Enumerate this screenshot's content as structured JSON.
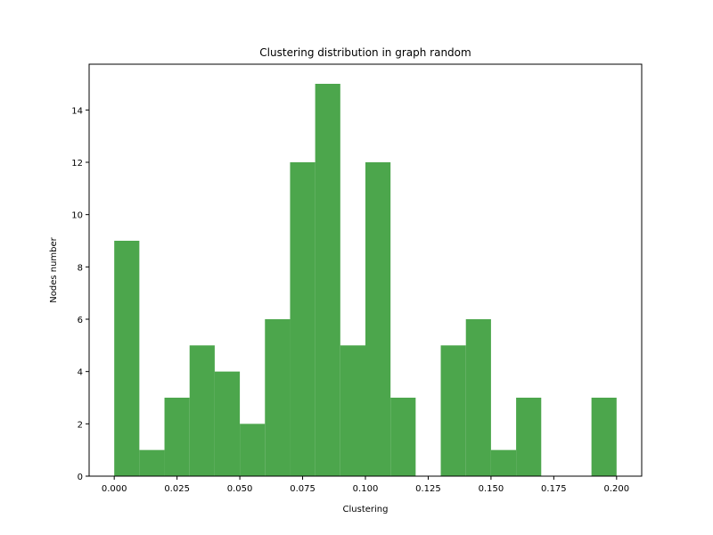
{
  "chart_data": {
    "type": "bar",
    "title": "Clustering distribution in graph random",
    "xlabel": "Clustering",
    "ylabel": "Nodes number",
    "xlim": [
      -0.01,
      0.21
    ],
    "ylim": [
      0,
      15.75
    ],
    "grid": false,
    "bar_color": "#4ca64c",
    "bin_edges": [
      0.0,
      0.01,
      0.02,
      0.03,
      0.04,
      0.05,
      0.06,
      0.07,
      0.08,
      0.09,
      0.1,
      0.11,
      0.12,
      0.13,
      0.14,
      0.15,
      0.16,
      0.17,
      0.18,
      0.19,
      0.2
    ],
    "values": [
      9,
      1,
      3,
      5,
      4,
      2,
      6,
      12,
      15,
      5,
      12,
      3,
      0,
      5,
      6,
      1,
      3,
      0,
      0,
      3
    ],
    "x_ticks": [
      0.0,
      0.025,
      0.05,
      0.075,
      0.1,
      0.125,
      0.15,
      0.175,
      0.2
    ],
    "x_tick_labels": [
      "0.000",
      "0.025",
      "0.050",
      "0.075",
      "0.100",
      "0.125",
      "0.150",
      "0.175",
      "0.200"
    ],
    "y_ticks": [
      0,
      2,
      4,
      6,
      8,
      10,
      12,
      14
    ],
    "y_tick_labels": [
      "0",
      "2",
      "4",
      "6",
      "8",
      "10",
      "12",
      "14"
    ]
  }
}
